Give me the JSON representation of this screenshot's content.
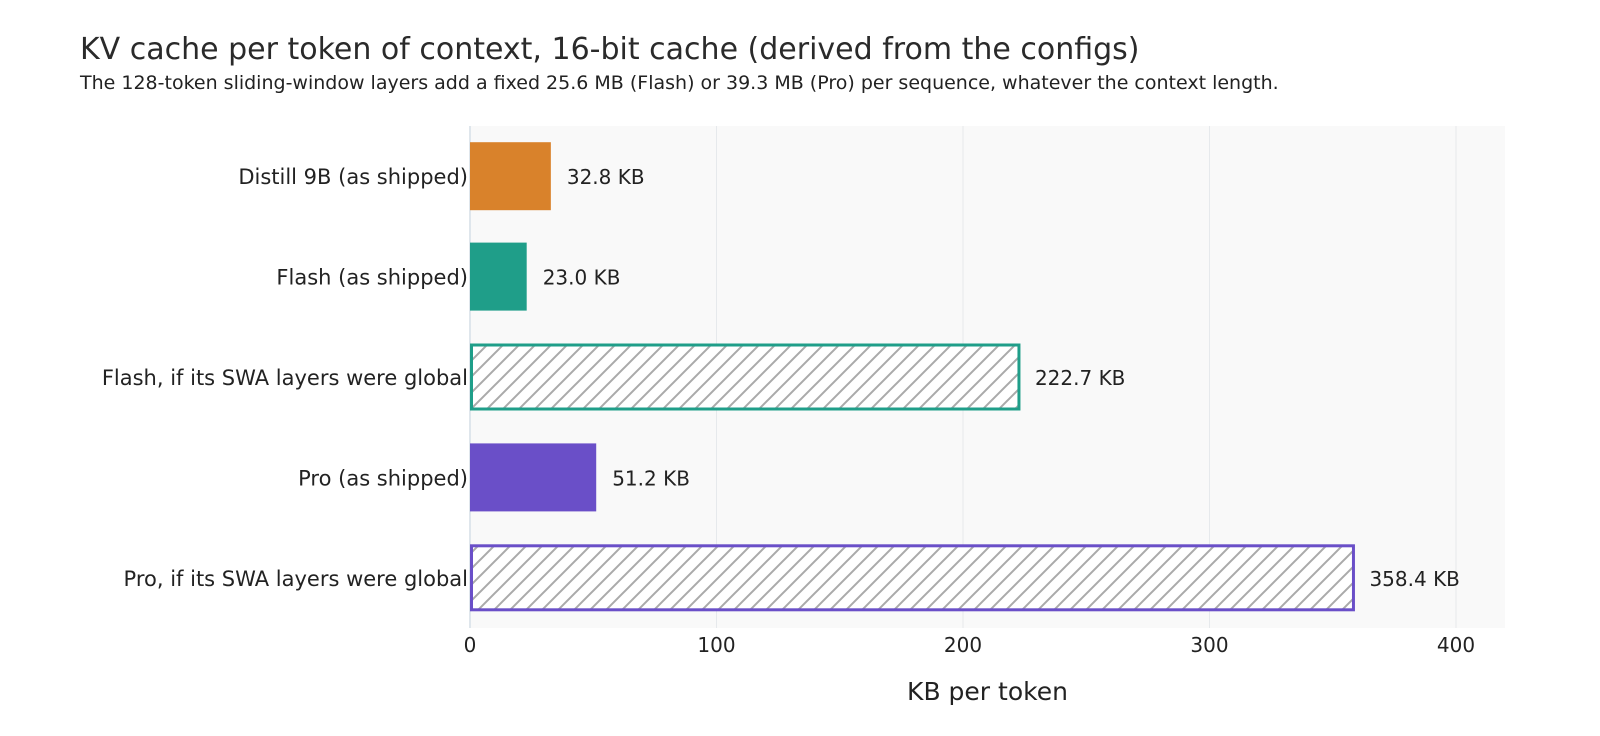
{
  "title": "KV cache per token of context, 16-bit cache (derived from the configs)",
  "subtitle": "The 128-token sliding-window layers add a fixed 25.6 MB (Flash) or 39.3 MB (Pro) per sequence, whatever the context length.",
  "chart_data": {
    "type": "bar",
    "orientation": "horizontal",
    "title": "KV cache per token of context, 16-bit cache (derived from the configs)",
    "subtitle": "The 128-token sliding-window layers add a fixed 25.6 MB (Flash) or 39.3 MB (Pro) per sequence, whatever the context length.",
    "xlabel": "KB per token",
    "ylabel": "",
    "xlim": [
      0,
      420
    ],
    "xticks": [
      0,
      100,
      200,
      300,
      400
    ],
    "grid": true,
    "categories": [
      "Distill 9B (as shipped)",
      "Flash (as shipped)",
      "Flash, if its SWA layers were global",
      "Pro (as shipped)",
      "Pro, if its SWA layers were global"
    ],
    "values": [
      32.8,
      23.0,
      222.7,
      51.2,
      358.4
    ],
    "value_labels": [
      "32.8 KB",
      "23.0 KB",
      "222.7 KB",
      "51.2 KB",
      "358.4 KB"
    ],
    "colors": [
      "#d9822b",
      "#1f9e89",
      "#1f9e89",
      "#6a4fc8",
      "#6a4fc8"
    ],
    "hatched": [
      false,
      false,
      true,
      false,
      true
    ],
    "hatch_color": "#aaaaaa",
    "plot_background": "#f9f9f9"
  }
}
